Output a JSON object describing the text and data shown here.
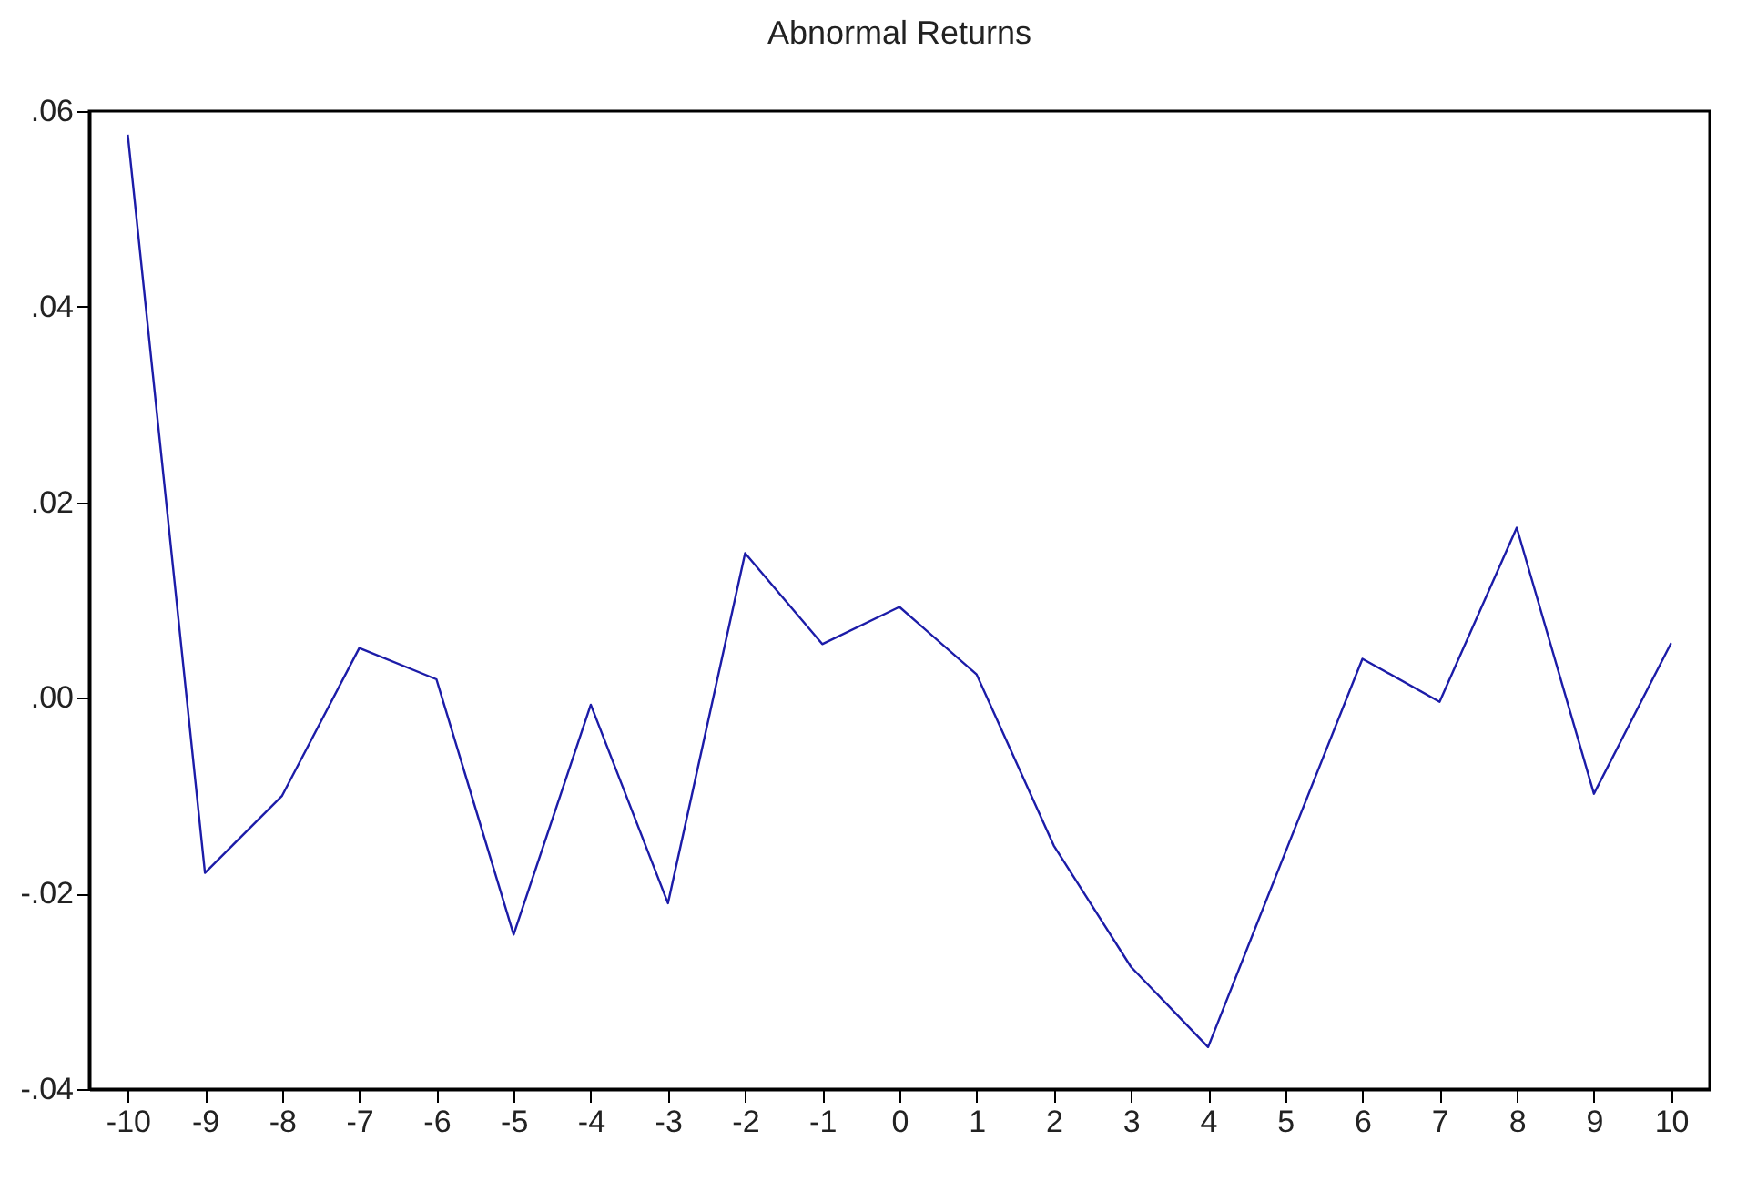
{
  "chart_data": {
    "type": "line",
    "title": "Abnormal Returns",
    "categories": [
      "-10",
      "-9",
      "-8",
      "-7",
      "-6",
      "-5",
      "-4",
      "-3",
      "-2",
      "-1",
      "0",
      "1",
      "2",
      "3",
      "4",
      "5",
      "6",
      "7",
      "8",
      "9",
      "10"
    ],
    "series": [
      {
        "color": "#1c1ca8",
        "values": [
          0.0576,
          -0.0179,
          -0.01,
          0.0051,
          0.0019,
          -0.0242,
          -0.0007,
          -0.021,
          0.0148,
          0.0055,
          0.0093,
          0.0024,
          -0.0151,
          -0.0275,
          -0.0357,
          -0.0158,
          0.004,
          -0.0004,
          0.0174,
          -0.0098,
          0.0056
        ]
      }
    ],
    "ylim": [
      -0.04,
      0.06
    ],
    "yticks": [
      {
        "value": -0.04,
        "label": "-.04"
      },
      {
        "value": -0.02,
        "label": "-.02"
      },
      {
        "value": 0,
        "label": ".00"
      },
      {
        "value": 0.02,
        "label": ".02"
      },
      {
        "value": 0.04,
        "label": ".04"
      },
      {
        "value": 0.06,
        "label": ".06"
      }
    ],
    "grid": false,
    "legend": false,
    "marker": "none",
    "line_style": "solid"
  }
}
